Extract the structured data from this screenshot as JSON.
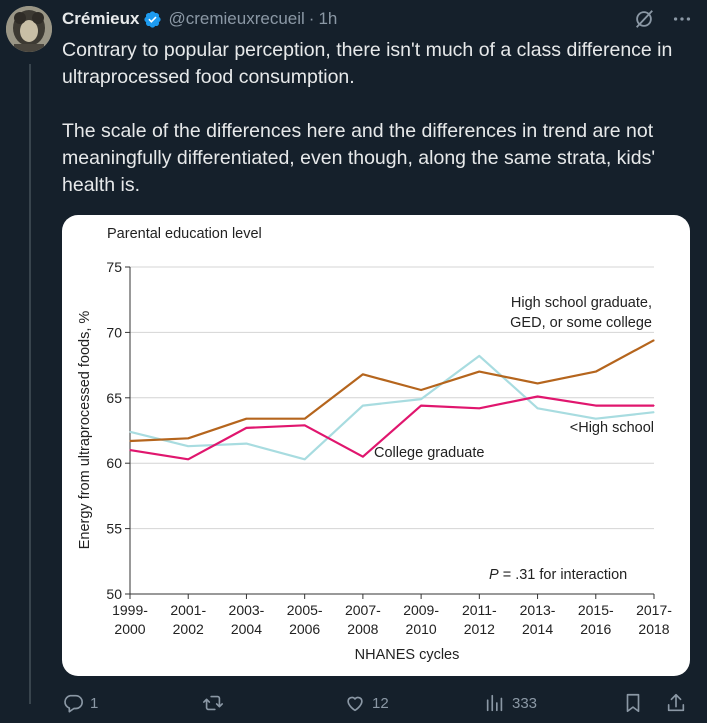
{
  "tweet": {
    "author_name": "Crémieux",
    "handle": "@cremieuxrecueil",
    "separator": "·",
    "time": "1h",
    "paragraphs": [
      "Contrary to popular perception, there isn't much of a class difference in ultraprocessed food consumption.",
      "The scale of the differences here and the differences in trend are not meaningfully differentiated, even though, along the same strata, kids' health is."
    ]
  },
  "icons": {
    "verified": "verified-badge-icon",
    "grok": "grok-icon",
    "more": "more-icon",
    "reply": "reply-icon",
    "retweet": "retweet-icon",
    "like": "like-icon",
    "views": "views-icon",
    "bookmark": "bookmark-icon",
    "share": "share-icon"
  },
  "actions": {
    "replies": "1",
    "retweets": "",
    "likes": "12",
    "views": "333"
  },
  "colors": {
    "background": "#15202b",
    "verified": "#1d9bf0",
    "line_hs": "#b5651d",
    "line_college": "#e0166e",
    "line_lths": "#a8dce0"
  },
  "chart_data": {
    "type": "line",
    "title": "Parental education level",
    "xlabel": "NHANES cycles",
    "ylabel": "Energy from ultraprocessed foods, %",
    "ylim": [
      50,
      75
    ],
    "yticks": [
      50,
      55,
      60,
      65,
      70,
      75
    ],
    "categories": [
      "1999-2000",
      "2001-2002",
      "2003-2004",
      "2005-2006",
      "2007-2008",
      "2009-2010",
      "2011-2012",
      "2013-2014",
      "2015-2016",
      "2017-2018"
    ],
    "category_lines": [
      [
        "1999-",
        "2000"
      ],
      [
        "2001-",
        "2002"
      ],
      [
        "2003-",
        "2004"
      ],
      [
        "2005-",
        "2006"
      ],
      [
        "2007-",
        "2008"
      ],
      [
        "2009-",
        "2010"
      ],
      [
        "2011-",
        "2012"
      ],
      [
        "2013-",
        "2014"
      ],
      [
        "2015-",
        "2016"
      ],
      [
        "2017-",
        "2018"
      ]
    ],
    "grid": true,
    "series": [
      {
        "name": "High school graduate, GED, or some college",
        "label_lines": [
          "High school graduate,",
          "GED, or some college"
        ],
        "values": [
          61.7,
          61.9,
          63.4,
          63.4,
          66.8,
          65.6,
          67.0,
          66.1,
          67.0,
          69.4
        ]
      },
      {
        "name": "College graduate",
        "label_lines": [
          "College graduate"
        ],
        "values": [
          61.0,
          60.3,
          62.7,
          62.9,
          60.5,
          64.4,
          64.2,
          65.1,
          64.4,
          64.4
        ]
      },
      {
        "name": "<High school",
        "label_lines": [
          "<High school"
        ],
        "values": [
          62.4,
          61.3,
          61.5,
          60.3,
          64.4,
          64.9,
          68.2,
          64.2,
          63.4,
          63.9
        ]
      }
    ],
    "annotation_p": "P",
    "annotation_rest": " = .31 for interaction"
  }
}
